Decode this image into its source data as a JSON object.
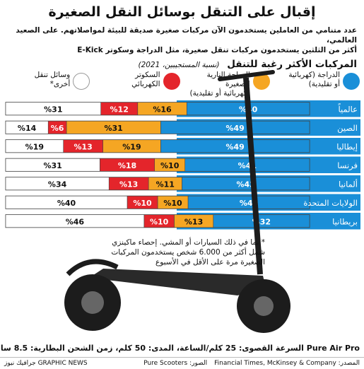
{
  "header": {
    "title": "إقبال على التنقل بوسائل النقل الصغيرة",
    "intro_lines": [
      "عدد متنامي من العاملين يستخدمون الآن مركبات صغيرة صديقة للبيئة لمواصلاتهم. على الصعيد العالمي،",
      "أكثر من الثلثين يستخدمون مركبات تنقل صغيرة، مثل الدراجة وسكوتر E-Kick"
    ]
  },
  "chart_header": {
    "title": "المركبات الأكثر رغبة للتنقل",
    "note": "(نسبة المستجيبين، 2021)"
  },
  "legend": [
    {
      "label": "الدراجة (كهربائية\nأو تقليدية)",
      "color": "#1a8fd8"
    },
    {
      "label": "الدراجة النارية الصغيرة\n(كهربائية أو تقليدية)",
      "color": "#f5a623"
    },
    {
      "label": "السكوتر\nالكهربائي",
      "color": "#e4252b"
    },
    {
      "label": "وسائل تنقل\nأخرى*",
      "color": "#ffffff"
    }
  ],
  "chart_data": {
    "type": "bar",
    "stacked": true,
    "orientation": "horizontal",
    "unit": "%",
    "categories": [
      "عالمياً",
      "الصين",
      "إيطاليا",
      "فرنسا",
      "ألمانيا",
      "الولايات المتحدة",
      "بريطانيا"
    ],
    "series": [
      {
        "name": "الدراجة (كهربائية أو تقليدية)",
        "color": "#1a8fd8",
        "values": [
          40,
          49,
          49,
          41,
          42,
          40,
          32
        ]
      },
      {
        "name": "الدراجة النارية الصغيرة (كهربائية أو تقليدية)",
        "color": "#f5a623",
        "values": [
          16,
          31,
          19,
          10,
          11,
          10,
          13
        ]
      },
      {
        "name": "السكوتر الكهربائي",
        "color": "#e4252b",
        "values": [
          12,
          6,
          13,
          18,
          13,
          10,
          10
        ]
      },
      {
        "name": "وسائل تنقل أخرى*",
        "color": "#ffffff",
        "values": [
          31,
          14,
          19,
          31,
          34,
          40,
          46
        ]
      }
    ],
    "label_format": "%{v}"
  },
  "footnote": "* بما في ذلك السيارات أو المشي. إحصاء ماكينزي شمل أكثر من 6.000 شخص يستخدمون المركبات الصغيرة مرة على الأقل في الأسبوع",
  "product": {
    "name": "Pure Air Pro",
    "specs": "السرعة القصوى: 25 كلم/الساعة، المدى: 50 كلم، زمن الشحن البطارية: 8.5 ساعات"
  },
  "footer": {
    "source": "المصدر: Financial Times, McKinsey & Company",
    "photo": "الصور: Pure Scooters",
    "credit": "GRAPHIC NEWS جرافيك نيوز"
  },
  "colors": {
    "background": "#ffffff",
    "row_band": "#1a8fd8",
    "bar_border": "#444444"
  }
}
